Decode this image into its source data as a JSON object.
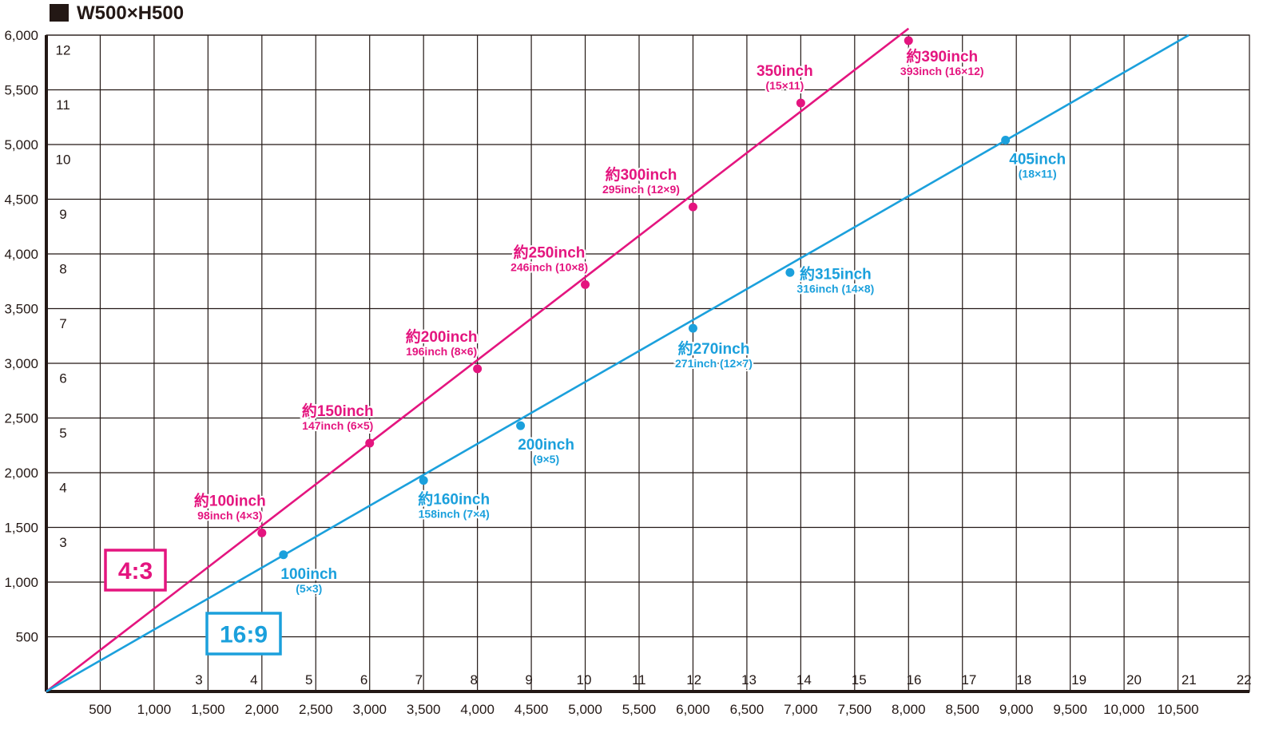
{
  "chart_data": {
    "type": "line",
    "title": "W500×H500",
    "x_axis": {
      "range": [
        0,
        11500
      ],
      "ticks": [
        500,
        1000,
        1500,
        2000,
        2500,
        3000,
        3500,
        4000,
        4500,
        5000,
        5500,
        6000,
        6500,
        7000,
        7500,
        8000,
        8500,
        9000,
        9500,
        10000,
        10500
      ],
      "tick_labels": [
        "500",
        "1,000",
        "1,500",
        "2,000",
        "2,500",
        "3,000",
        "3,500",
        "4,000",
        "4,500",
        "5,000",
        "5,500",
        "6,000",
        "6,500",
        "7,000",
        "7,500",
        "8,000",
        "8,500",
        "9,000",
        "9,500",
        "10,000",
        "10,500"
      ],
      "panel_ticks": [
        3,
        4,
        5,
        6,
        7,
        8,
        9,
        10,
        11,
        12,
        13,
        14,
        15,
        16,
        17,
        18,
        19,
        20,
        21,
        22
      ],
      "panel_tick_labels": [
        "3",
        "4",
        "5",
        "6",
        "7",
        "8",
        "9",
        "10",
        "11",
        "12",
        "13",
        "14",
        "15",
        "16",
        "17",
        "18",
        "19",
        "20",
        "21",
        "22"
      ]
    },
    "y_axis": {
      "range": [
        0,
        6000
      ],
      "ticks": [
        500,
        1000,
        1500,
        2000,
        2500,
        3000,
        3500,
        4000,
        4500,
        5000,
        5500,
        6000
      ],
      "tick_labels": [
        "500",
        "1,000",
        "1,500",
        "2,000",
        "2,500",
        "3,000",
        "3,500",
        "4,000",
        "4,500",
        "5,000",
        "5,500",
        "6,000"
      ],
      "panel_ticks": [
        3,
        4,
        5,
        6,
        7,
        8,
        9,
        10,
        11,
        12
      ],
      "panel_tick_labels": [
        "3",
        "4",
        "5",
        "6",
        "7",
        "8",
        "9",
        "10",
        "11",
        "12"
      ]
    },
    "grid": true,
    "series": [
      {
        "name": "4:3",
        "color": "#e4157f",
        "line": {
          "x": [
            0,
            8000
          ],
          "y": [
            0,
            6060
          ]
        },
        "points": [
          {
            "x": 2000,
            "y": 1450,
            "label": "約100inch",
            "sub": "98inch (4×3)"
          },
          {
            "x": 3000,
            "y": 2270,
            "label": "約150inch",
            "sub": "147inch (6×5)"
          },
          {
            "x": 4000,
            "y": 2950,
            "label": "約200inch",
            "sub": "196inch (8×6)"
          },
          {
            "x": 5000,
            "y": 3720,
            "label": "約250inch",
            "sub": "246inch (10×8)"
          },
          {
            "x": 6000,
            "y": 4430,
            "label": "約300inch",
            "sub": "295inch (12×9)"
          },
          {
            "x": 7000,
            "y": 5380,
            "label": "350inch",
            "sub": "(15×11)"
          },
          {
            "x": 8000,
            "y": 5950,
            "label": "約390inch",
            "sub": "393inch (16×12)"
          }
        ]
      },
      {
        "name": "16:9",
        "color": "#1ba0dc",
        "line": {
          "x": [
            0,
            10600
          ],
          "y": [
            0,
            6000
          ]
        },
        "points": [
          {
            "x": 2200,
            "y": 1250,
            "label": "100inch",
            "sub": "(5×3)"
          },
          {
            "x": 3500,
            "y": 1930,
            "label": "約160inch",
            "sub": "158inch (7×4)"
          },
          {
            "x": 4400,
            "y": 2430,
            "label": "200inch",
            "sub": "(9×5)"
          },
          {
            "x": 6000,
            "y": 3320,
            "label": "約270inch",
            "sub": "271inch (12×7)"
          },
          {
            "x": 6900,
            "y": 3830,
            "label": "約315inch",
            "sub": "316inch (14×8)"
          },
          {
            "x": 8900,
            "y": 5040,
            "label": "405inch",
            "sub": "(18×11)"
          }
        ]
      }
    ]
  }
}
